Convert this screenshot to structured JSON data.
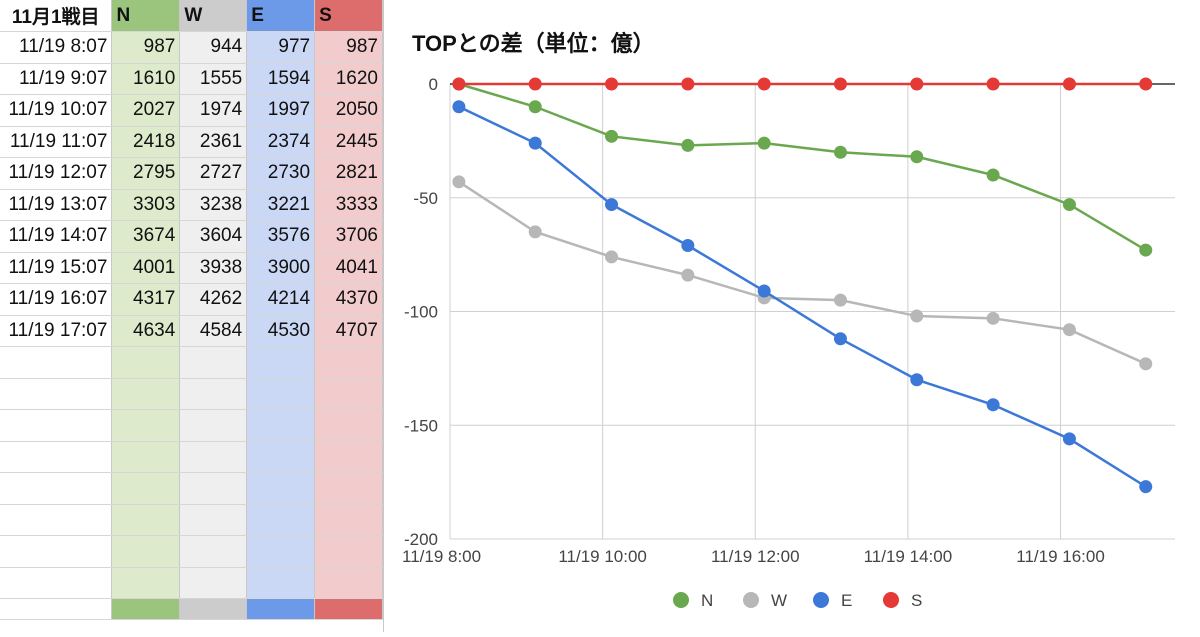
{
  "sheet": {
    "corner": "11月1戦目",
    "headers": [
      "N",
      "W",
      "E",
      "S"
    ],
    "rows": [
      {
        "time": "11/19 8:07",
        "N": "987",
        "W": "944",
        "E": "977",
        "S": "987"
      },
      {
        "time": "11/19 9:07",
        "N": "1610",
        "W": "1555",
        "E": "1594",
        "S": "1620"
      },
      {
        "time": "11/19 10:07",
        "N": "2027",
        "W": "1974",
        "E": "1997",
        "S": "2050"
      },
      {
        "time": "11/19 11:07",
        "N": "2418",
        "W": "2361",
        "E": "2374",
        "S": "2445"
      },
      {
        "time": "11/19 12:07",
        "N": "2795",
        "W": "2727",
        "E": "2730",
        "S": "2821"
      },
      {
        "time": "11/19 13:07",
        "N": "3303",
        "W": "3238",
        "E": "3221",
        "S": "3333"
      },
      {
        "time": "11/19 14:07",
        "N": "3674",
        "W": "3604",
        "E": "3576",
        "S": "3706"
      },
      {
        "time": "11/19 15:07",
        "N": "4001",
        "W": "3938",
        "E": "3900",
        "S": "4041"
      },
      {
        "time": "11/19 16:07",
        "N": "4317",
        "W": "4262",
        "E": "4214",
        "S": "4370"
      },
      {
        "time": "11/19 17:07",
        "N": "4634",
        "W": "4584",
        "E": "4530",
        "S": "4707"
      }
    ]
  },
  "chart_data": {
    "type": "line",
    "title": "TOPとの差（単位：億）",
    "xlabel": "",
    "ylabel": "",
    "x": [
      "11/19 8:07",
      "11/19 9:07",
      "11/19 10:07",
      "11/19 11:07",
      "11/19 12:07",
      "11/19 13:07",
      "11/19 14:07",
      "11/19 15:07",
      "11/19 16:07",
      "11/19 17:07"
    ],
    "x_range": [
      "11/19 8:00",
      "11/19 17:30"
    ],
    "x_ticks": [
      "11/19 8:00",
      "11/19 10:00",
      "11/19 12:00",
      "11/19 14:00",
      "11/19 16:00"
    ],
    "ylim": [
      -200,
      0
    ],
    "y_ticks": [
      0,
      -50,
      -100,
      -150,
      -200
    ],
    "grid": true,
    "legend_position": "bottom",
    "series": [
      {
        "name": "N",
        "color": "#6aa84f",
        "values": [
          0,
          -10,
          -23,
          -27,
          -26,
          -30,
          -32,
          -40,
          -53,
          -73
        ]
      },
      {
        "name": "W",
        "color": "#b7b7b7",
        "values": [
          -43,
          -65,
          -76,
          -84,
          -94,
          -95,
          -102,
          -103,
          -108,
          -123
        ]
      },
      {
        "name": "E",
        "color": "#3c78d8",
        "values": [
          -10,
          -26,
          -53,
          -71,
          -91,
          -112,
          -130,
          -141,
          -156,
          -177
        ]
      },
      {
        "name": "S",
        "color": "#e53935",
        "values": [
          0,
          0,
          0,
          0,
          0,
          0,
          0,
          0,
          0,
          0
        ]
      }
    ]
  }
}
